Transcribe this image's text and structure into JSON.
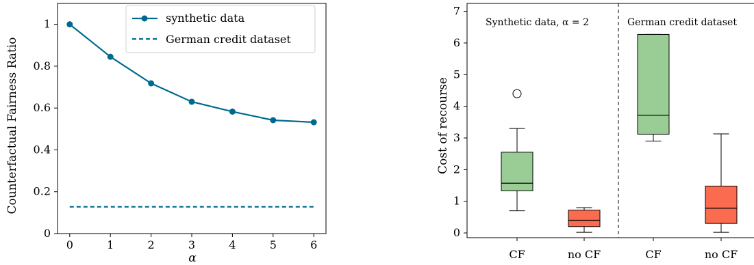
{
  "colors": {
    "line": "#006a8e",
    "cf_box": "#9acd95",
    "nocf_box": "#fa6b50",
    "axis": "#000000"
  },
  "chart_data": [
    {
      "type": "line",
      "xlabel": "α",
      "ylabel": "Counterfactual Fairness Ratio",
      "xlim": [
        -0.3,
        6.3
      ],
      "ylim": [
        0,
        1.1
      ],
      "x": [
        0,
        1,
        2,
        3,
        4,
        5,
        6
      ],
      "xticks": [
        "0",
        "1",
        "2",
        "3",
        "4",
        "5",
        "6"
      ],
      "yticks": [
        "0",
        "0.2",
        "0.4",
        "0.6",
        "0.8",
        "1"
      ],
      "ytick_values": [
        0,
        0.2,
        0.4,
        0.6,
        0.8,
        1
      ],
      "series": [
        {
          "name": "synthetic data",
          "style": "solid-marker",
          "values": [
            1.0,
            0.845,
            0.718,
            0.63,
            0.583,
            0.542,
            0.532
          ]
        },
        {
          "name": "German credit dataset",
          "style": "dashed",
          "values": [
            0.128,
            0.128,
            0.128,
            0.128,
            0.128,
            0.128,
            0.128
          ]
        }
      ],
      "legend": "top-right",
      "grid": false
    },
    {
      "type": "box",
      "ylabel": "Cost of recourse",
      "ylim": [
        -0.15,
        7.25
      ],
      "yticks": [
        "0",
        "1",
        "2",
        "3",
        "4",
        "5",
        "6",
        "7"
      ],
      "ytick_values": [
        0,
        1,
        2,
        3,
        4,
        5,
        6,
        7
      ],
      "categories": [
        "CF",
        "no CF",
        "CF",
        "no CF"
      ],
      "groups": [
        "Synthetic data, α = 2",
        "German credit dataset"
      ],
      "boxes": [
        {
          "label": "CF",
          "group": 0,
          "whisker_low": 0.7,
          "q1": 1.33,
          "median": 1.57,
          "q3": 2.55,
          "whisker_high": 3.3,
          "outliers": [
            4.4
          ]
        },
        {
          "label": "no CF",
          "group": 0,
          "whisker_low": 0.02,
          "q1": 0.2,
          "median": 0.4,
          "q3": 0.72,
          "whisker_high": 0.8,
          "outliers": []
        },
        {
          "label": "CF",
          "group": 1,
          "whisker_low": 2.9,
          "q1": 3.12,
          "median": 3.72,
          "q3": 6.27,
          "whisker_high": 6.27,
          "outliers": []
        },
        {
          "label": "no CF",
          "group": 1,
          "whisker_low": 0.02,
          "q1": 0.3,
          "median": 0.78,
          "q3": 1.48,
          "whisker_high": 3.13,
          "outliers": []
        }
      ],
      "grid": false
    }
  ]
}
